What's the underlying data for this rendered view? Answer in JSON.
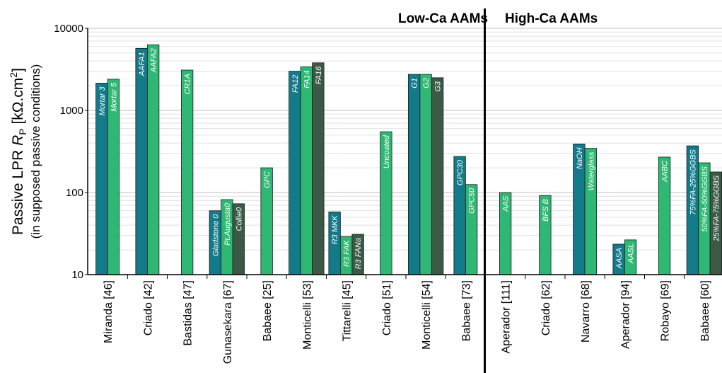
{
  "chart_data": {
    "type": "bar",
    "yscale": "log",
    "ylim": [
      10,
      10000
    ],
    "yticks": [
      "10",
      "100",
      "1000",
      "10000"
    ],
    "ylabel": "Passive LPR R_P [kΩ.cm²]",
    "ylabel_main_text": "Passive LPR ",
    "ylabel_R": "R",
    "ylabel_sub_p": "P",
    "ylabel_unit": " [kΩ.cm",
    "ylabel_sup": "2",
    "ylabel_close": "]",
    "ylabel_sub": "(in supposed passive conditions)",
    "grid": "horizontal",
    "groups": [
      {
        "title": "Low-Ca AAMs"
      },
      {
        "title": "High-Ca AAMs"
      }
    ],
    "colors": {
      "first": "#137a8a",
      "second": "#2fb873",
      "third": "#3a5a45",
      "edge": "#1a1a1a"
    },
    "categories": [
      {
        "name": "Miranda [46]",
        "group": 0,
        "bars": [
          {
            "label": "Mortar 3",
            "value": 2150,
            "color": "first"
          },
          {
            "label": "Mortar 5",
            "value": 2400,
            "color": "second"
          }
        ]
      },
      {
        "name": "Criado [42]",
        "group": 0,
        "bars": [
          {
            "label": "AAFA1",
            "value": 5700,
            "color": "first"
          },
          {
            "label": "AAFA2",
            "value": 6300,
            "color": "second"
          }
        ]
      },
      {
        "name": "Bastidas [47]",
        "group": 0,
        "bars": [
          {
            "label": "CR1A",
            "value": 3100,
            "color": "second"
          }
        ]
      },
      {
        "name": "Gunasekara [67]",
        "group": 0,
        "bars": [
          {
            "label": "Gladstone 0",
            "value": 60,
            "color": "first"
          },
          {
            "label": "Pt.Augusta0",
            "value": 82,
            "color": "second"
          },
          {
            "label": "Collie0",
            "value": 73,
            "color": "third"
          }
        ]
      },
      {
        "name": "Babaee [25]",
        "group": 0,
        "bars": [
          {
            "label": "GPC",
            "value": 200,
            "color": "second"
          }
        ]
      },
      {
        "name": "Monticelli [53]",
        "group": 0,
        "bars": [
          {
            "label": "FA12",
            "value": 3000,
            "color": "first"
          },
          {
            "label": "FA14",
            "value": 3400,
            "color": "second"
          },
          {
            "label": "FA16",
            "value": 3800,
            "color": "third"
          }
        ]
      },
      {
        "name": "Tittarelli [45]",
        "group": 0,
        "bars": [
          {
            "label": "R3 MKK",
            "value": 58,
            "color": "first"
          },
          {
            "label": "R3 FAK",
            "value": 29,
            "color": "second"
          },
          {
            "label": "R3 FANa",
            "value": 31,
            "color": "third"
          }
        ]
      },
      {
        "name": "Criado [51]",
        "group": 0,
        "bars": [
          {
            "label": "Uncoated",
            "value": 550,
            "color": "second"
          }
        ]
      },
      {
        "name": "Monticelli [54]",
        "group": 0,
        "bars": [
          {
            "label": "G1",
            "value": 2750,
            "color": "first"
          },
          {
            "label": "G2",
            "value": 2750,
            "color": "second"
          },
          {
            "label": "G3",
            "value": 2500,
            "color": "third"
          }
        ]
      },
      {
        "name": "Babaee [73]",
        "group": 0,
        "bars": [
          {
            "label": "GPC30",
            "value": 275,
            "color": "first"
          },
          {
            "label": "GPC50",
            "value": 125,
            "color": "second"
          }
        ]
      },
      {
        "name": "Aperador [111]",
        "group": 1,
        "bars": [
          {
            "label": "AAS",
            "value": 100,
            "color": "second"
          }
        ]
      },
      {
        "name": "Criado [62]",
        "group": 1,
        "bars": [
          {
            "label": "BFS B",
            "value": 92,
            "color": "second"
          }
        ]
      },
      {
        "name": "Navarro [68]",
        "group": 1,
        "bars": [
          {
            "label": "NaOH",
            "value": 390,
            "color": "first"
          },
          {
            "label": "Waterglass",
            "value": 345,
            "color": "second"
          }
        ]
      },
      {
        "name": "Aperador [94]",
        "group": 1,
        "bars": [
          {
            "label": "AASA",
            "value": 23.5,
            "color": "first"
          },
          {
            "label": "AASL",
            "value": 26.5,
            "color": "second"
          }
        ]
      },
      {
        "name": "Robayo [69]",
        "group": 1,
        "bars": [
          {
            "label": "AABC",
            "value": 270,
            "color": "second"
          }
        ]
      },
      {
        "name": "Babaee [60]",
        "group": 1,
        "bars": [
          {
            "label": "75%FA-25%GGBS",
            "value": 370,
            "color": "first"
          },
          {
            "label": "50%FA-50%GGBS",
            "value": 230,
            "color": "second"
          },
          {
            "label": "25%FA-75%GGBS",
            "value": 178,
            "color": "third"
          }
        ]
      }
    ]
  }
}
